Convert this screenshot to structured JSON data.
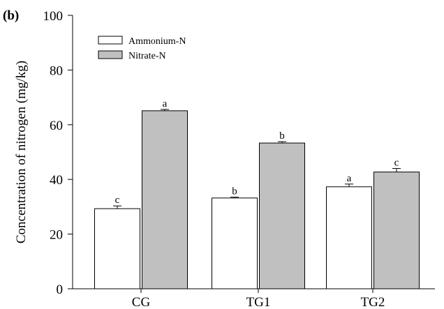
{
  "chart_data": {
    "type": "bar",
    "panel_label": "(b)",
    "title": "",
    "xlabel": "",
    "ylabel": "Concentration of nitrogen (mg/kg)",
    "ylim": [
      0,
      100
    ],
    "yticks": [
      0,
      20,
      40,
      60,
      80,
      100
    ],
    "categories": [
      "CG",
      "TG1",
      "TG2"
    ],
    "legend_position": "top-left",
    "grid": false,
    "series": [
      {
        "name": "Ammonium-N",
        "color": "#ffffff",
        "values": [
          29.3,
          33.2,
          37.3
        ],
        "errors": [
          1.0,
          0.3,
          1.0
        ],
        "significance": [
          "c",
          "b",
          "a"
        ]
      },
      {
        "name": "Nitrate-N",
        "color": "#c0c0c0",
        "values": [
          65.1,
          53.3,
          42.7
        ],
        "errors": [
          0.5,
          0.5,
          1.3
        ],
        "significance": [
          "a",
          "b",
          "c"
        ]
      }
    ]
  }
}
